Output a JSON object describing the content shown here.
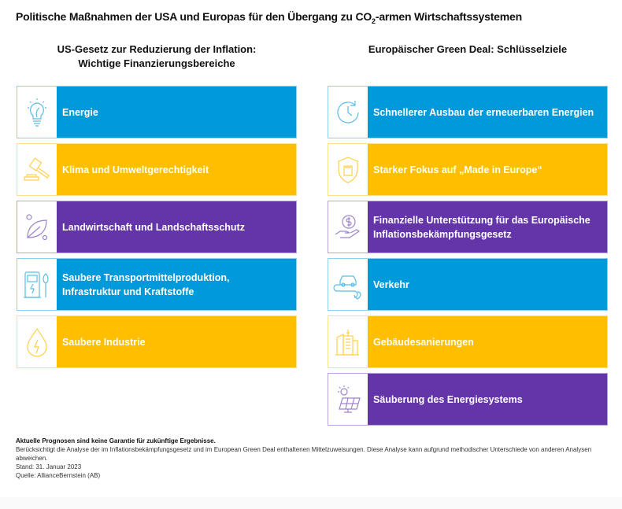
{
  "title": {
    "pre": "Politische Maßnahmen der USA und Europas für den Übergang zu CO",
    "sub": "2",
    "post": "-armen Wirtschaftssystemen"
  },
  "left": {
    "heading_line1": "US-Gesetz zur Reduzierung der Inflation:",
    "heading_line2": "Wichtige Finanzierungsbereiche",
    "items": [
      {
        "label": "Energie",
        "icon": "lightbulb-leaf-icon",
        "color": "#009ADB"
      },
      {
        "label": "Klima und Umweltgerechtigkeit",
        "icon": "gavel-icon",
        "color": "#FFBE00"
      },
      {
        "label": "Landwirtschaft und Landschaftsschutz",
        "icon": "leaf-icon",
        "color": "#6435A8"
      },
      {
        "label": "Saubere Transportmittelproduktion, Infrastruktur und Kraftstoffe",
        "icon": "ev-charger-icon",
        "color": "#009ADB"
      },
      {
        "label": "Saubere Industrie",
        "icon": "energy-drop-icon",
        "color": "#FFBE00"
      }
    ]
  },
  "right": {
    "heading": "Europäischer Green Deal: Schlüsselziele",
    "items": [
      {
        "label": "Schnellerer Ausbau der erneuerbaren Energien",
        "icon": "clock-refresh-icon",
        "color": "#009ADB"
      },
      {
        "label": "Starker Fokus auf „Made in Europe“",
        "icon": "shield-castle-icon",
        "color": "#FFBE00"
      },
      {
        "label": "Finanzielle Unterstützung für das Europäische Inflationsbekämpfungsgesetz",
        "icon": "hand-dollar-icon",
        "color": "#6435A8"
      },
      {
        "label": "Verkehr",
        "icon": "car-route-icon",
        "color": "#009ADB"
      },
      {
        "label": "Gebäudesanierungen",
        "icon": "buildings-icon",
        "color": "#FFBE00"
      },
      {
        "label": "Säuberung des Energiesystems",
        "icon": "solar-panel-icon",
        "color": "#6435A8"
      }
    ]
  },
  "footer": {
    "disclaimer": "Aktuelle Prognosen sind keine Garantie für zukünftige Ergebnisse.",
    "note": "Berücksichtigt die Analyse der im Inflationsbekämpfungsgesetz und im European Green Deal enthaltenen Mittelzuweisungen. Diese Analyse kann aufgrund methodischer Unterschiede von anderen Analysen abweichen.",
    "date": "Stand: 31. Januar 2023",
    "source": "Quelle: AllianceBernstein (AB)"
  }
}
